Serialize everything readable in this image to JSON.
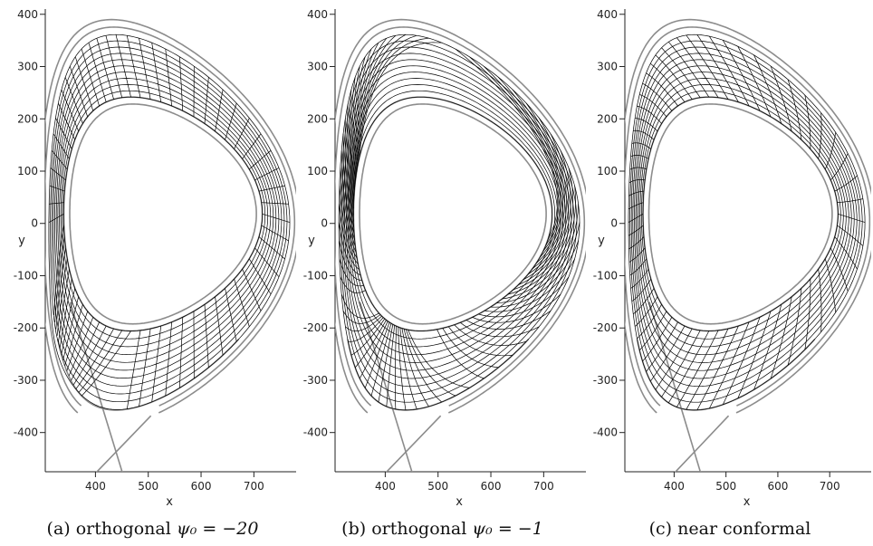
{
  "panels": [
    {
      "id": "a",
      "variant": "orthogonal-a",
      "caption": "(a) orthogonal",
      "caption_math": "ψ₀ = −20",
      "xlabel": "x",
      "ylabel": "y",
      "xticks": [
        400,
        500,
        600,
        700
      ],
      "yticks": [
        400,
        300,
        200,
        100,
        0,
        -100,
        -200,
        -300,
        -400
      ],
      "xlim": [
        305,
        780
      ],
      "ylim": [
        -475,
        410
      ]
    },
    {
      "id": "b",
      "variant": "orthogonal-b",
      "caption": "(b) orthogonal",
      "caption_math": "ψ₀ = −1",
      "xlabel": "x",
      "ylabel": "y",
      "xticks": [
        400,
        500,
        600,
        700
      ],
      "yticks": [
        400,
        300,
        200,
        100,
        0,
        -100,
        -200,
        -300,
        -400
      ],
      "xlim": [
        305,
        780
      ],
      "ylim": [
        -475,
        410
      ]
    },
    {
      "id": "c",
      "variant": "conformal",
      "caption": "(c) near conformal",
      "caption_math": "",
      "xlabel": "x",
      "ylabel": "y",
      "xticks": [
        400,
        500,
        600,
        700
      ],
      "yticks": [
        400,
        300,
        200,
        100,
        0,
        -100,
        -200,
        -300,
        -400
      ],
      "xlim": [
        305,
        780
      ],
      "ylim": [
        -475,
        410
      ]
    }
  ],
  "colors": {
    "boundary": "#8c8c8c",
    "grid": "#000000",
    "axis": "#222222"
  }
}
